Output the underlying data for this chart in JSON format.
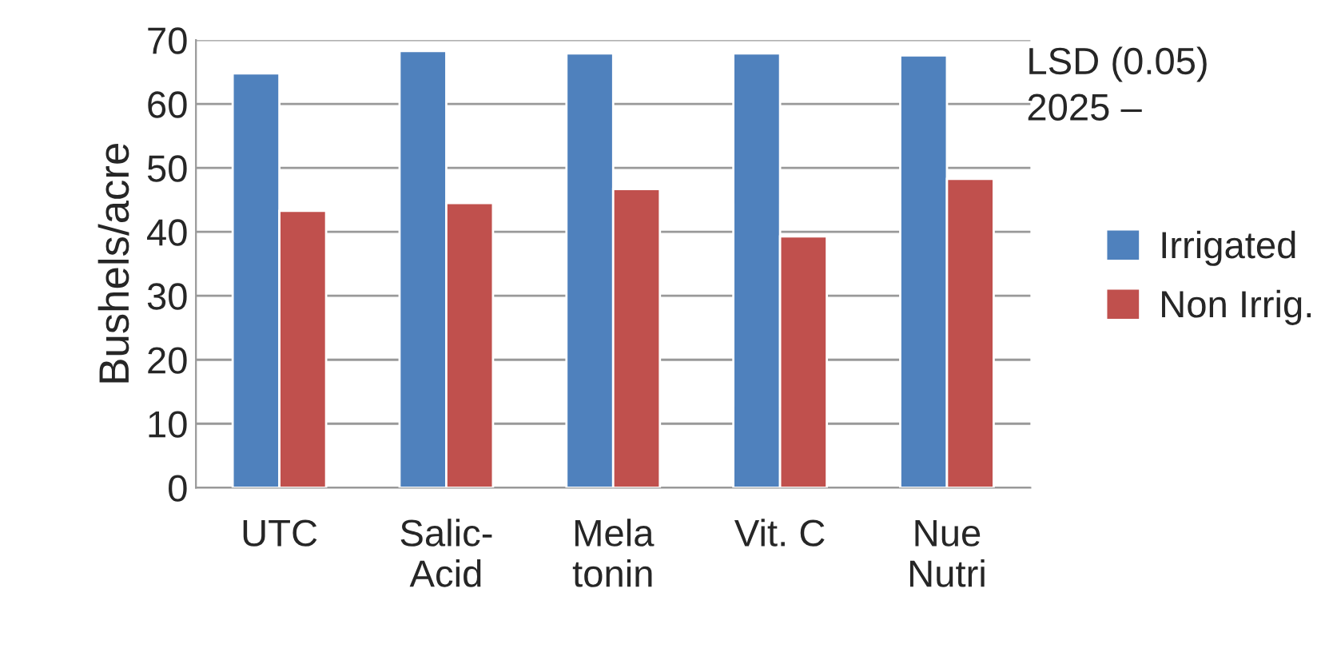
{
  "chart_data": {
    "type": "bar",
    "ylabel": "Bushels/acre",
    "categories": [
      "UTC",
      "Salic-\nAcid",
      "Mela\ntonin",
      "Vit. C",
      "Nue\nNutri"
    ],
    "series": [
      {
        "name": "Irrigated",
        "color": "#4f81bd",
        "values": [
          64.8,
          68.3,
          67.9,
          67.9,
          67.6
        ]
      },
      {
        "name": "Non Irrig.",
        "color": "#c0504d",
        "values": [
          43.3,
          44.5,
          46.7,
          39.3,
          48.3
        ]
      }
    ],
    "ylim": [
      0,
      70
    ],
    "yticks": [
      0,
      10,
      20,
      30,
      40,
      50,
      60,
      70
    ],
    "grid": "y",
    "legend": "right",
    "annotations": [
      "LSD (0.05)\n2025 –"
    ]
  }
}
